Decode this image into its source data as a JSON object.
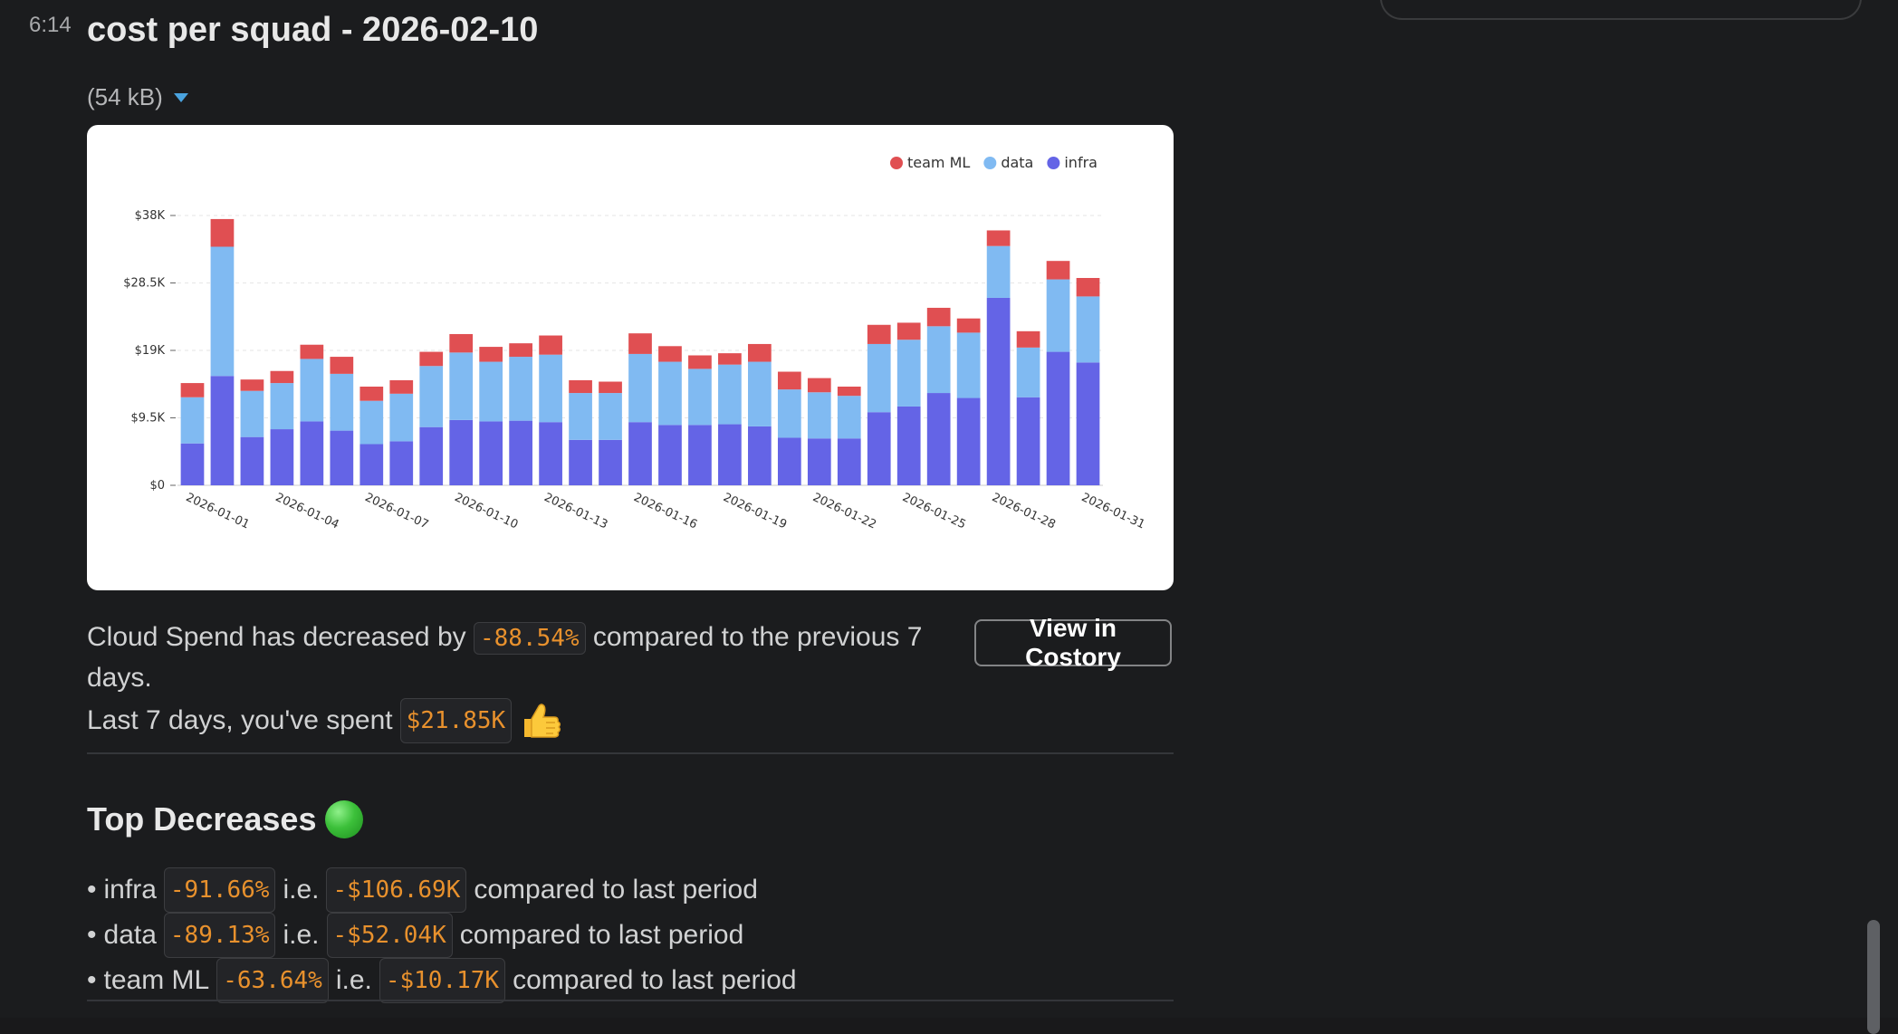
{
  "message": {
    "timestamp": "6:14",
    "title": "cost per squad - 2026-02-10",
    "file_size": "(54 kB)"
  },
  "chart_data": {
    "type": "bar",
    "stacked": true,
    "legend": [
      "team ML",
      "data",
      "infra"
    ],
    "legend_position": "top-right",
    "y_ticks": [
      "$0",
      "$9.5K",
      "$19K",
      "$28.5K",
      "$38K"
    ],
    "ylim": [
      0,
      38000
    ],
    "x_tick_labels": [
      "2026-01-01",
      "2026-01-04",
      "2026-01-07",
      "2026-01-10",
      "2026-01-13",
      "2026-01-16",
      "2026-01-19",
      "2026-01-22",
      "2026-01-25",
      "2026-01-28",
      "2026-01-31"
    ],
    "categories": [
      "2026-01-01",
      "2026-01-02",
      "2026-01-03",
      "2026-01-04",
      "2026-01-05",
      "2026-01-06",
      "2026-01-07",
      "2026-01-08",
      "2026-01-09",
      "2026-01-10",
      "2026-01-11",
      "2026-01-12",
      "2026-01-13",
      "2026-01-14",
      "2026-01-15",
      "2026-01-16",
      "2026-01-17",
      "2026-01-18",
      "2026-01-19",
      "2026-01-20",
      "2026-01-21",
      "2026-01-22",
      "2026-01-23",
      "2026-01-24",
      "2026-01-25",
      "2026-01-26",
      "2026-01-27",
      "2026-01-28",
      "2026-01-29",
      "2026-01-30",
      "2026-01-31"
    ],
    "colors": {
      "team ML": "#e04f52",
      "data": "#80baf2",
      "infra": "#6464e6"
    },
    "series": [
      {
        "name": "infra",
        "values": [
          5900,
          15400,
          6800,
          7900,
          9000,
          7700,
          5800,
          6200,
          8200,
          9200,
          9000,
          9100,
          8900,
          6400,
          6400,
          8900,
          8500,
          8500,
          8600,
          8300,
          6700,
          6600,
          6600,
          10300,
          11100,
          13000,
          12300,
          26400,
          12400,
          18800,
          17300
        ]
      },
      {
        "name": "data",
        "values": [
          6500,
          18200,
          6500,
          6500,
          8800,
          8000,
          6100,
          6700,
          8600,
          9500,
          8400,
          9000,
          9500,
          6600,
          6600,
          9600,
          8900,
          7900,
          8400,
          9100,
          6800,
          6500,
          6000,
          9600,
          9400,
          9400,
          9200,
          7300,
          7000,
          10200,
          9300
        ]
      },
      {
        "name": "team ML",
        "values": [
          2000,
          3900,
          1600,
          1700,
          2000,
          2400,
          2000,
          1900,
          2000,
          2600,
          2100,
          1900,
          2700,
          1800,
          1600,
          2900,
          2200,
          1900,
          1600,
          2500,
          2500,
          2000,
          1300,
          2700,
          2400,
          2600,
          2000,
          2200,
          2300,
          2600,
          2600
        ]
      }
    ]
  },
  "summary": {
    "line1_prefix": "Cloud Spend has decreased by",
    "line1_value": "-88.54%",
    "line1_suffix": "compared to the previous 7 days.",
    "line2_prefix": "Last 7 days, you've spent",
    "line2_value": "$21.85K"
  },
  "view_button_label": "View in Costory",
  "top_decreases": {
    "heading": "Top Decreases",
    "ie_label": "i.e.",
    "suffix": "compared to last period",
    "items": [
      {
        "name": "infra",
        "pct": "-91.66%",
        "amount": "-$106.69K"
      },
      {
        "name": "data",
        "pct": "-89.13%",
        "amount": "-$52.04K"
      },
      {
        "name": "team ML",
        "pct": "-63.64%",
        "amount": "-$10.17K"
      }
    ]
  }
}
